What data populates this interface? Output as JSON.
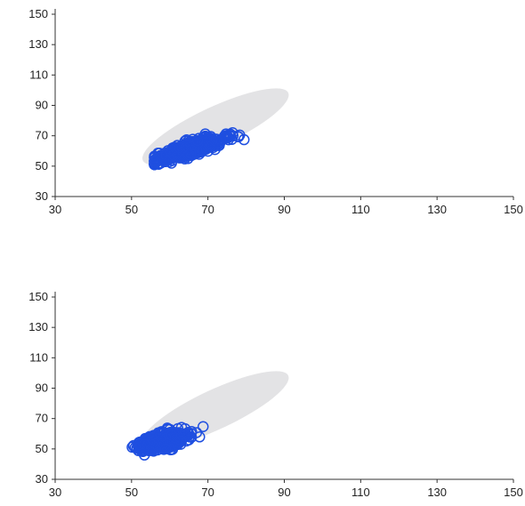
{
  "chart_data": [
    {
      "type": "scatter",
      "title": "",
      "xlabel": "",
      "ylabel": "",
      "xlim": [
        30,
        150
      ],
      "ylim": [
        30,
        150
      ],
      "xticks": [
        30,
        50,
        70,
        90,
        110,
        130,
        150
      ],
      "yticks": [
        30,
        50,
        70,
        90,
        110,
        130,
        150
      ],
      "grid": false,
      "marker_color": "#1f4fe0",
      "region_color": "#e3e3e5",
      "reference_region": {
        "center": [
          72,
          76
        ],
        "radius_x": 21,
        "radius_y": 13,
        "angle_deg": 25
      },
      "cluster": {
        "center": [
          65,
          61
        ],
        "x_spread": 5,
        "slope": 0.75,
        "y_spread": 2.3,
        "count": 520,
        "x_range": [
          56,
          81
        ],
        "y_range": [
          51,
          78
        ]
      }
    },
    {
      "type": "scatter",
      "title": "",
      "xlabel": "",
      "ylabel": "",
      "xlim": [
        30,
        150
      ],
      "ylim": [
        30,
        150
      ],
      "xticks": [
        30,
        50,
        70,
        90,
        110,
        130,
        150
      ],
      "yticks": [
        30,
        50,
        70,
        90,
        110,
        130,
        150
      ],
      "grid": false,
      "marker_color": "#1f4fe0",
      "region_color": "#e3e3e5",
      "reference_region": {
        "center": [
          72,
          76
        ],
        "radius_x": 21,
        "radius_y": 13,
        "angle_deg": 25
      },
      "cluster": {
        "center": [
          58,
          55
        ],
        "x_spread": 3.2,
        "slope": 0.55,
        "y_spread": 2.4,
        "count": 520,
        "x_range": [
          49,
          69
        ],
        "y_range": [
          46,
          66
        ]
      }
    }
  ]
}
